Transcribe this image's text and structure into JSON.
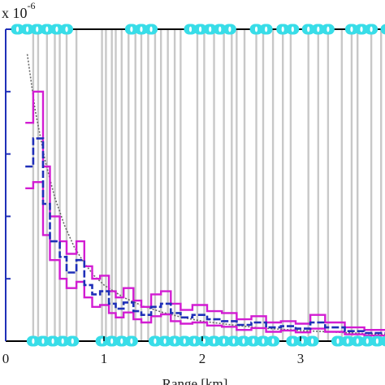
{
  "chart_data": {
    "type": "line",
    "xlabel": "Range [km]",
    "y_multiplier": "x 10",
    "y_exponent": "-6",
    "xlim": [
      0,
      3.95
    ],
    "xticks": [
      0,
      1,
      2,
      3
    ],
    "xtick_labels": [
      "0",
      "1",
      "2",
      "3"
    ],
    "ylim": [
      0,
      5
    ],
    "yticks": [
      1,
      2,
      3,
      4,
      5
    ],
    "grid": false,
    "colors": {
      "mean": "#1f2fb8",
      "bounds": "#d21cd2",
      "fit": "#666666",
      "gates": "#c8c8c8",
      "markers": "#38dde8",
      "axes": "#000000",
      "yaxis": "#1f2fb8"
    },
    "gate_lines_x": [
      0.28,
      0.33,
      0.42,
      0.5,
      0.55,
      0.62,
      0.72,
      0.98,
      1.02,
      1.08,
      1.12,
      1.18,
      1.25,
      1.32,
      1.38,
      1.45,
      1.52,
      1.58,
      1.65,
      1.72,
      1.78,
      1.95,
      2.02,
      2.12,
      2.22,
      2.3,
      2.35,
      2.43,
      2.55,
      2.62,
      2.72,
      2.82,
      2.9,
      3.08,
      3.18,
      3.28,
      3.42,
      3.52,
      3.58,
      3.72,
      3.82
    ],
    "marker_groups_top": [
      [
        0.12,
        0.22,
        0.32,
        0.42,
        0.52,
        0.62
      ],
      [
        1.28,
        1.38,
        1.48
      ],
      [
        1.88,
        1.98,
        2.08,
        2.18,
        2.28
      ],
      [
        2.55,
        2.65
      ],
      [
        2.82,
        2.92
      ],
      [
        3.08,
        3.18,
        3.28
      ],
      [
        3.52,
        3.62,
        3.72
      ],
      [
        3.88
      ]
    ],
    "marker_groups_bottom": [
      [
        0.28,
        0.38,
        0.48,
        0.58,
        0.68
      ],
      [
        0.98,
        1.08,
        1.18,
        1.28
      ],
      [
        1.52,
        1.62,
        1.72,
        1.82,
        1.92,
        2.02,
        2.12,
        2.22,
        2.32,
        2.42,
        2.52,
        2.62,
        2.72
      ],
      [
        2.92,
        3.02,
        3.12
      ],
      [
        3.38,
        3.48,
        3.58,
        3.68,
        3.78,
        3.88
      ]
    ],
    "series": [
      {
        "role": "upper bound",
        "x": [
          0.2,
          0.28,
          0.28,
          0.38,
          0.38,
          0.45,
          0.45,
          0.55,
          0.55,
          0.62,
          0.62,
          0.72,
          0.72,
          0.8,
          0.8,
          0.88,
          0.88,
          0.96,
          0.96,
          1.05,
          1.05,
          1.12,
          1.12,
          1.2,
          1.2,
          1.3,
          1.3,
          1.38,
          1.38,
          1.48,
          1.48,
          1.58,
          1.58,
          1.68,
          1.68,
          1.78,
          1.78,
          1.9,
          1.9,
          2.05,
          2.05,
          2.2,
          2.2,
          2.35,
          2.35,
          2.5,
          2.5,
          2.65,
          2.65,
          2.8,
          2.8,
          2.95,
          2.95,
          3.1,
          3.1,
          3.25,
          3.25,
          3.45,
          3.45,
          3.65,
          3.65,
          3.95
        ],
        "y": [
          3.5,
          3.5,
          4.0,
          4.0,
          2.8,
          2.8,
          2.0,
          2.0,
          1.6,
          1.6,
          1.4,
          1.4,
          1.6,
          1.6,
          1.2,
          1.2,
          1.0,
          1.0,
          1.05,
          1.05,
          0.8,
          0.8,
          0.7,
          0.7,
          0.85,
          0.85,
          0.65,
          0.65,
          0.55,
          0.55,
          0.75,
          0.75,
          0.8,
          0.8,
          0.6,
          0.6,
          0.5,
          0.5,
          0.58,
          0.58,
          0.48,
          0.48,
          0.45,
          0.45,
          0.35,
          0.35,
          0.4,
          0.4,
          0.3,
          0.3,
          0.32,
          0.32,
          0.28,
          0.28,
          0.42,
          0.42,
          0.3,
          0.3,
          0.22,
          0.22,
          0.18,
          0.18
        ]
      },
      {
        "role": "mean",
        "x": [
          0.2,
          0.28,
          0.28,
          0.38,
          0.38,
          0.45,
          0.45,
          0.55,
          0.55,
          0.62,
          0.62,
          0.72,
          0.72,
          0.8,
          0.8,
          0.88,
          0.88,
          0.96,
          0.96,
          1.05,
          1.05,
          1.12,
          1.12,
          1.2,
          1.2,
          1.3,
          1.3,
          1.38,
          1.38,
          1.48,
          1.48,
          1.58,
          1.58,
          1.68,
          1.68,
          1.78,
          1.78,
          1.9,
          1.9,
          2.05,
          2.05,
          2.2,
          2.2,
          2.35,
          2.35,
          2.5,
          2.5,
          2.65,
          2.65,
          2.8,
          2.8,
          2.95,
          2.95,
          3.1,
          3.1,
          3.25,
          3.25,
          3.45,
          3.45,
          3.65,
          3.65,
          3.95
        ],
        "y": [
          2.8,
          2.8,
          3.25,
          3.25,
          2.2,
          2.2,
          1.6,
          1.6,
          1.35,
          1.35,
          1.1,
          1.1,
          1.3,
          1.3,
          0.9,
          0.9,
          0.75,
          0.75,
          0.8,
          0.8,
          0.6,
          0.6,
          0.52,
          0.52,
          0.62,
          0.62,
          0.48,
          0.48,
          0.42,
          0.42,
          0.55,
          0.55,
          0.6,
          0.6,
          0.45,
          0.45,
          0.38,
          0.38,
          0.42,
          0.42,
          0.35,
          0.35,
          0.32,
          0.32,
          0.26,
          0.26,
          0.3,
          0.3,
          0.22,
          0.22,
          0.24,
          0.24,
          0.2,
          0.2,
          0.3,
          0.3,
          0.22,
          0.22,
          0.16,
          0.16,
          0.13,
          0.13
        ]
      },
      {
        "role": "lower bound",
        "x": [
          0.2,
          0.28,
          0.28,
          0.38,
          0.38,
          0.45,
          0.45,
          0.55,
          0.55,
          0.62,
          0.62,
          0.72,
          0.72,
          0.8,
          0.8,
          0.88,
          0.88,
          0.96,
          0.96,
          1.05,
          1.05,
          1.12,
          1.12,
          1.2,
          1.2,
          1.3,
          1.3,
          1.38,
          1.38,
          1.48,
          1.48,
          1.58,
          1.58,
          1.68,
          1.68,
          1.78,
          1.78,
          1.9,
          1.9,
          2.05,
          2.05,
          2.2,
          2.2,
          2.35,
          2.35,
          2.5,
          2.5,
          2.65,
          2.65,
          2.8,
          2.8,
          2.95,
          2.95,
          3.1,
          3.1,
          3.25,
          3.25,
          3.45,
          3.45,
          3.65,
          3.65,
          3.95
        ],
        "y": [
          2.45,
          2.45,
          2.55,
          2.55,
          1.7,
          1.7,
          1.3,
          1.3,
          1.0,
          1.0,
          0.85,
          0.85,
          0.95,
          0.95,
          0.7,
          0.7,
          0.55,
          0.55,
          0.58,
          0.58,
          0.45,
          0.45,
          0.38,
          0.38,
          0.46,
          0.46,
          0.35,
          0.35,
          0.3,
          0.3,
          0.4,
          0.4,
          0.43,
          0.43,
          0.32,
          0.32,
          0.28,
          0.28,
          0.3,
          0.3,
          0.25,
          0.25,
          0.23,
          0.23,
          0.18,
          0.18,
          0.21,
          0.21,
          0.15,
          0.15,
          0.17,
          0.17,
          0.14,
          0.14,
          0.2,
          0.2,
          0.15,
          0.15,
          0.11,
          0.11,
          0.09,
          0.09
        ]
      },
      {
        "role": "fit",
        "x": [
          0.22,
          0.3,
          0.4,
          0.5,
          0.6,
          0.7,
          0.8,
          0.9,
          1.0,
          1.2,
          1.4,
          1.6,
          1.8,
          2.0,
          2.3,
          2.6,
          3.0,
          3.4,
          3.95
        ],
        "y": [
          4.6,
          3.7,
          2.9,
          2.3,
          1.85,
          1.5,
          1.25,
          1.05,
          0.9,
          0.7,
          0.56,
          0.46,
          0.38,
          0.32,
          0.26,
          0.21,
          0.17,
          0.14,
          0.1
        ]
      }
    ]
  }
}
